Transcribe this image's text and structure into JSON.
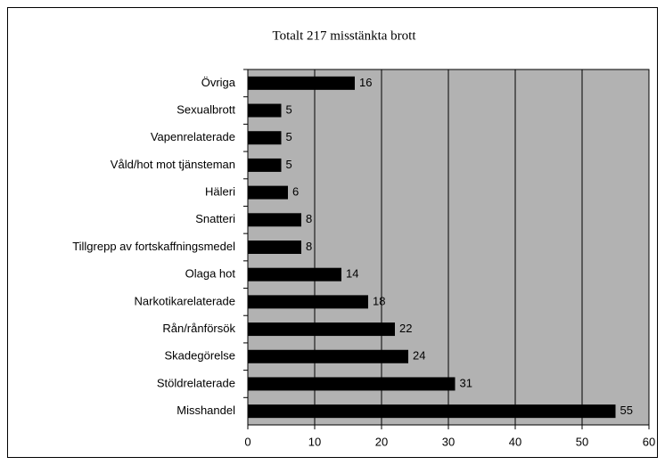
{
  "chart_data": {
    "type": "barh",
    "title": "Totalt 217 misstänkta brott",
    "categories": [
      "Övriga",
      "Sexualbrott",
      "Vapenrelaterade",
      "Våld/hot mot tjänsteman",
      "Häleri",
      "Snatteri",
      "Tillgrepp av fortskaffningsmedel",
      "Olaga hot",
      "Narkotikarelaterade",
      "Rån/rånförsök",
      "Skadegörelse",
      "Stöldrelaterade",
      "Misshandel"
    ],
    "values": [
      16,
      5,
      5,
      5,
      6,
      8,
      8,
      14,
      18,
      22,
      24,
      31,
      55
    ],
    "color": "#000000",
    "background": "#b2b2b2",
    "xlim": [
      0,
      60
    ],
    "xticks": [
      0,
      10,
      20,
      30,
      40,
      50,
      60
    ],
    "grid": true
  }
}
